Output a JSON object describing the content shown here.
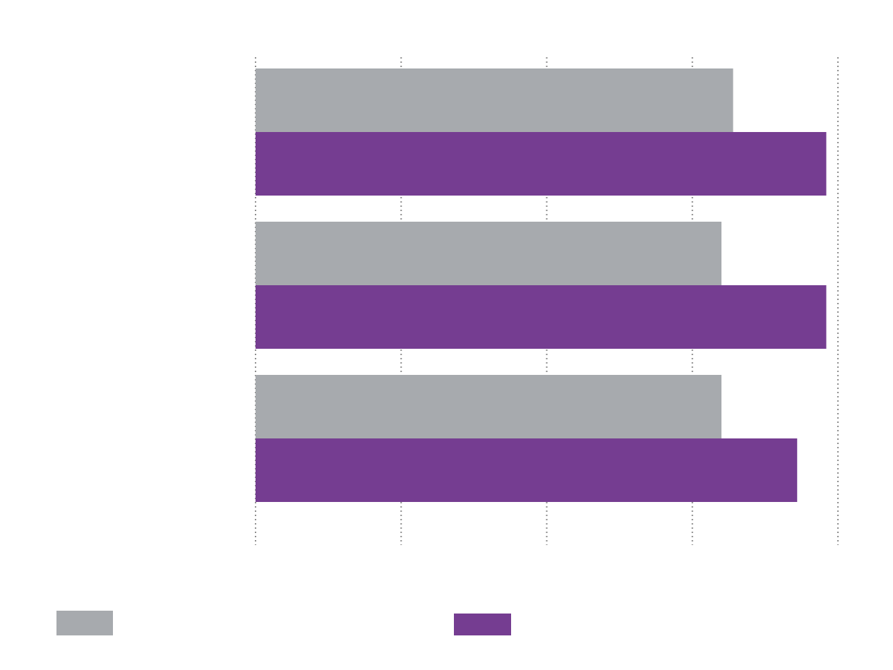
{
  "chart_data": {
    "type": "bar",
    "orientation": "horizontal",
    "categories": [
      "",
      "",
      ""
    ],
    "series": [
      {
        "values": [
          82,
          80,
          80
        ],
        "color": "#a7aaae"
      },
      {
        "values": [
          98,
          98,
          93
        ],
        "color": "#753d91"
      }
    ],
    "xlim": [
      0,
      100
    ],
    "gridlines": [
      0,
      25,
      50,
      75,
      100
    ],
    "grid": "vertical dotted",
    "legend_placement": "bottom",
    "text_color": "#ffffff",
    "background": "#ffffff"
  }
}
